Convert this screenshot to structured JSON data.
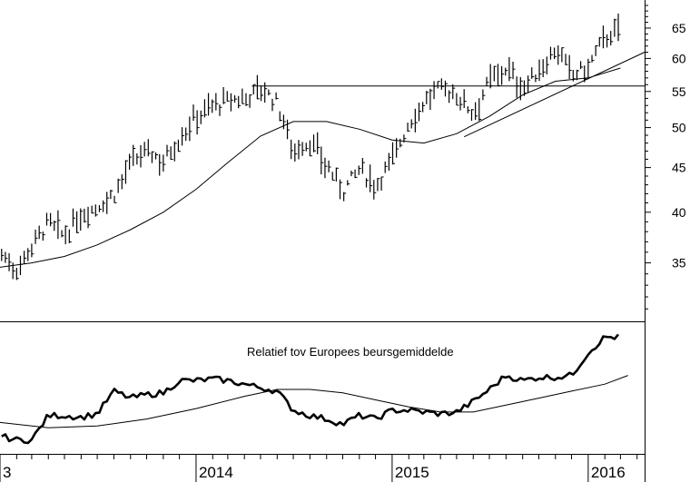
{
  "chart_data": [
    {
      "type": "ohlc",
      "title": "",
      "xlabel": "",
      "ylabel": "",
      "y_scale": "log",
      "ylim": [
        30,
        70
      ],
      "y_ticks": [
        35,
        40,
        45,
        50,
        55,
        60,
        65
      ],
      "x_tick_labels": [
        {
          "label": "3",
          "date": "2013-01-01"
        },
        {
          "label": "2014",
          "date": "2014-01-01"
        },
        {
          "label": "2015",
          "date": "2015-01-01"
        },
        {
          "label": "2016",
          "date": "2016-01-01"
        }
      ],
      "x_range": [
        "2013-01-01",
        "2016-04-15"
      ],
      "grid": false,
      "price_points": [
        {
          "date": "2013-01-04",
          "close": 35.8
        },
        {
          "date": "2013-02-01",
          "close": 34.4
        },
        {
          "date": "2013-03-01",
          "close": 36.6
        },
        {
          "date": "2013-04-01",
          "close": 38.9
        },
        {
          "date": "2013-05-01",
          "close": 37.5
        },
        {
          "date": "2013-06-01",
          "close": 39.8
        },
        {
          "date": "2013-07-01",
          "close": 40.6
        },
        {
          "date": "2013-08-01",
          "close": 41.9
        },
        {
          "date": "2013-09-01",
          "close": 45.4
        },
        {
          "date": "2013-10-01",
          "close": 47.0
        },
        {
          "date": "2013-11-01",
          "close": 45.8
        },
        {
          "date": "2013-12-01",
          "close": 48.6
        },
        {
          "date": "2014-01-01",
          "close": 51.5
        },
        {
          "date": "2014-02-01",
          "close": 53.0
        },
        {
          "date": "2014-03-01",
          "close": 53.6
        },
        {
          "date": "2014-04-01",
          "close": 54.0
        },
        {
          "date": "2014-05-01",
          "close": 55.5
        },
        {
          "date": "2014-06-01",
          "close": 53.3
        },
        {
          "date": "2014-07-01",
          "close": 47.0
        },
        {
          "date": "2014-08-01",
          "close": 48.2
        },
        {
          "date": "2014-09-01",
          "close": 45.2
        },
        {
          "date": "2014-10-01",
          "close": 42.3
        },
        {
          "date": "2014-11-01",
          "close": 44.8
        },
        {
          "date": "2014-12-01",
          "close": 43.0
        },
        {
          "date": "2015-01-01",
          "close": 46.0
        },
        {
          "date": "2015-02-01",
          "close": 50.5
        },
        {
          "date": "2015-03-01",
          "close": 53.5
        },
        {
          "date": "2015-04-01",
          "close": 55.5
        },
        {
          "date": "2015-05-01",
          "close": 54.5
        },
        {
          "date": "2015-06-01",
          "close": 52.0
        },
        {
          "date": "2015-07-01",
          "close": 56.5
        },
        {
          "date": "2015-08-01",
          "close": 58.5
        },
        {
          "date": "2015-09-01",
          "close": 55.5
        },
        {
          "date": "2015-10-01",
          "close": 58.0
        },
        {
          "date": "2015-11-01",
          "close": 61.5
        },
        {
          "date": "2015-12-01",
          "close": 57.5
        },
        {
          "date": "2016-01-01",
          "close": 58.5
        },
        {
          "date": "2016-02-01",
          "close": 63.5
        },
        {
          "date": "2016-03-01",
          "close": 64.5
        }
      ],
      "moving_average": [
        {
          "date": "2013-01-01",
          "value": 34.6
        },
        {
          "date": "2013-03-01",
          "value": 35.0
        },
        {
          "date": "2013-05-01",
          "value": 35.6
        },
        {
          "date": "2013-07-01",
          "value": 36.7
        },
        {
          "date": "2013-09-01",
          "value": 38.2
        },
        {
          "date": "2013-11-01",
          "value": 40.0
        },
        {
          "date": "2014-01-01",
          "value": 42.5
        },
        {
          "date": "2014-03-01",
          "value": 45.6
        },
        {
          "date": "2014-05-01",
          "value": 48.9
        },
        {
          "date": "2014-07-01",
          "value": 50.8
        },
        {
          "date": "2014-09-01",
          "value": 50.8
        },
        {
          "date": "2014-11-01",
          "value": 49.8
        },
        {
          "date": "2015-01-01",
          "value": 48.4
        },
        {
          "date": "2015-03-01",
          "value": 48.0
        },
        {
          "date": "2015-05-01",
          "value": 49.2
        },
        {
          "date": "2015-07-01",
          "value": 51.5
        },
        {
          "date": "2015-09-01",
          "value": 54.5
        },
        {
          "date": "2015-11-01",
          "value": 56.5
        },
        {
          "date": "2016-01-01",
          "value": 57.0
        },
        {
          "date": "2016-03-01",
          "value": 58.5
        }
      ],
      "annotations": {
        "resistance": {
          "value": 55.8,
          "from": "2014-04-15",
          "to": "2016-04-15"
        },
        "trendline": {
          "from": {
            "date": "2015-05-15",
            "value": 48.8
          },
          "to": {
            "date": "2016-04-15",
            "value": 61.0
          }
        }
      }
    },
    {
      "type": "line",
      "title": "",
      "annotation_text": "Relatief tov Europees beursgemiddelde",
      "y_units": "relative",
      "ylim": [
        0.5,
        1.25
      ],
      "series": [
        {
          "values": [
            {
              "date": "2013-01-04",
              "value": 0.6
            },
            {
              "date": "2013-02-01",
              "value": 0.58
            },
            {
              "date": "2013-03-01",
              "value": 0.58
            },
            {
              "date": "2013-04-01",
              "value": 0.72
            },
            {
              "date": "2013-05-01",
              "value": 0.72
            },
            {
              "date": "2013-06-01",
              "value": 0.71
            },
            {
              "date": "2013-07-01",
              "value": 0.73
            },
            {
              "date": "2013-08-01",
              "value": 0.86
            },
            {
              "date": "2013-09-01",
              "value": 0.82
            },
            {
              "date": "2013-10-01",
              "value": 0.84
            },
            {
              "date": "2013-11-01",
              "value": 0.85
            },
            {
              "date": "2013-12-01",
              "value": 0.92
            },
            {
              "date": "2014-01-01",
              "value": 0.92
            },
            {
              "date": "2014-02-01",
              "value": 0.93
            },
            {
              "date": "2014-03-01",
              "value": 0.92
            },
            {
              "date": "2014-04-01",
              "value": 0.9
            },
            {
              "date": "2014-05-01",
              "value": 0.88
            },
            {
              "date": "2014-06-01",
              "value": 0.86
            },
            {
              "date": "2014-07-01",
              "value": 0.75
            },
            {
              "date": "2014-08-01",
              "value": 0.72
            },
            {
              "date": "2014-09-01",
              "value": 0.7
            },
            {
              "date": "2014-10-01",
              "value": 0.67
            },
            {
              "date": "2014-11-01",
              "value": 0.72
            },
            {
              "date": "2014-12-01",
              "value": 0.7
            },
            {
              "date": "2015-01-01",
              "value": 0.75
            },
            {
              "date": "2015-02-01",
              "value": 0.75
            },
            {
              "date": "2015-03-01",
              "value": 0.74
            },
            {
              "date": "2015-04-01",
              "value": 0.73
            },
            {
              "date": "2015-05-01",
              "value": 0.74
            },
            {
              "date": "2015-06-01",
              "value": 0.8
            },
            {
              "date": "2015-07-01",
              "value": 0.87
            },
            {
              "date": "2015-08-01",
              "value": 0.95
            },
            {
              "date": "2015-09-01",
              "value": 0.92
            },
            {
              "date": "2015-10-01",
              "value": 0.94
            },
            {
              "date": "2015-11-01",
              "value": 0.94
            },
            {
              "date": "2015-12-01",
              "value": 0.95
            },
            {
              "date": "2016-01-01",
              "value": 1.08
            },
            {
              "date": "2016-02-01",
              "value": 1.17
            },
            {
              "date": "2016-03-01",
              "value": 1.17
            }
          ]
        },
        {
          "values": [
            {
              "date": "2013-01-01",
              "value": 0.68
            },
            {
              "date": "2013-04-01",
              "value": 0.65
            },
            {
              "date": "2013-07-01",
              "value": 0.66
            },
            {
              "date": "2013-10-01",
              "value": 0.7
            },
            {
              "date": "2014-01-01",
              "value": 0.76
            },
            {
              "date": "2014-04-01",
              "value": 0.83
            },
            {
              "date": "2014-06-01",
              "value": 0.87
            },
            {
              "date": "2014-08-01",
              "value": 0.87
            },
            {
              "date": "2014-10-01",
              "value": 0.85
            },
            {
              "date": "2014-12-01",
              "value": 0.81
            },
            {
              "date": "2015-02-01",
              "value": 0.77
            },
            {
              "date": "2015-04-01",
              "value": 0.74
            },
            {
              "date": "2015-06-01",
              "value": 0.74
            },
            {
              "date": "2015-08-01",
              "value": 0.78
            },
            {
              "date": "2015-10-01",
              "value": 0.82
            },
            {
              "date": "2015-12-01",
              "value": 0.86
            },
            {
              "date": "2016-02-01",
              "value": 0.9
            },
            {
              "date": "2016-03-15",
              "value": 0.95
            }
          ]
        }
      ]
    }
  ]
}
